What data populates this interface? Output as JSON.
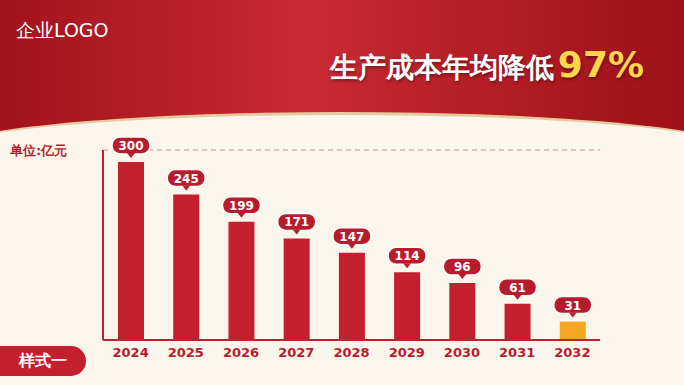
{
  "chart_data": {
    "type": "bar",
    "title": "生产成本年均降低97%",
    "y_label": "单位:亿元",
    "annotations": [
      "企业LOGO",
      "样式一"
    ],
    "categories": [
      "2024",
      "2025",
      "2026",
      "2027",
      "2028",
      "2029",
      "2030",
      "2031",
      "2032"
    ],
    "values": [
      300,
      245,
      199,
      171,
      147,
      114,
      96,
      61,
      31
    ],
    "colors": [
      "#c41f2e",
      "#c41f2e",
      "#c41f2e",
      "#c41f2e",
      "#c41f2e",
      "#c41f2e",
      "#c41f2e",
      "#c41f2e",
      "#f5a623"
    ],
    "ylim": [
      0,
      320
    ],
    "yticks": [
      0,
      60,
      120,
      180,
      240,
      300
    ],
    "grid": true,
    "data_labels": true,
    "tick_labels": "x"
  }
}
